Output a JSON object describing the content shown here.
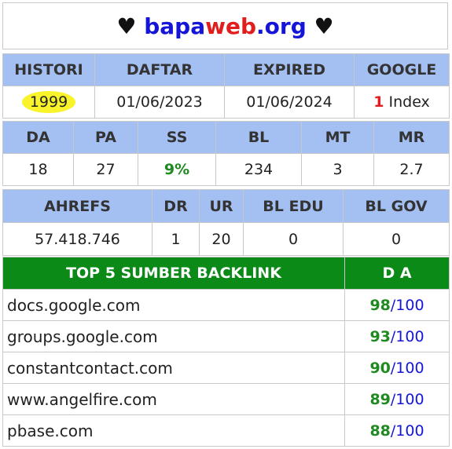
{
  "title": {
    "heart_left": "♥",
    "part_a": "bapa",
    "part_b": "web",
    "part_c": ".org",
    "heart_right": "♥"
  },
  "row1": {
    "headers": [
      "HISTORI",
      "DAFTAR",
      "EXPIRED",
      "GOOGLE"
    ],
    "histori": "1999",
    "daftar": "01/06/2023",
    "expired": "01/06/2024",
    "google_count": "1",
    "google_label": "Index"
  },
  "row2": {
    "headers": [
      "DA",
      "PA",
      "SS",
      "BL",
      "MT",
      "MR"
    ],
    "values": [
      "18",
      "27",
      "9%",
      "234",
      "3",
      "2.7"
    ]
  },
  "row3": {
    "headers": [
      "AHREFS",
      "DR",
      "UR",
      "BL EDU",
      "BL GOV"
    ],
    "values": [
      "57.418.746",
      "1",
      "20",
      "0",
      "0"
    ]
  },
  "backlinks": {
    "header_source": "TOP 5 SUMBER BACKLINK",
    "header_da": "D A",
    "items": [
      {
        "site": "docs.google.com",
        "da": "98",
        "max": "/100"
      },
      {
        "site": "groups.google.com",
        "da": "93",
        "max": "/100"
      },
      {
        "site": "constantcontact.com",
        "da": "90",
        "max": "/100"
      },
      {
        "site": "www.angelfire.com",
        "da": "89",
        "max": "/100"
      },
      {
        "site": "pbase.com",
        "da": "88",
        "max": "/100"
      }
    ]
  }
}
